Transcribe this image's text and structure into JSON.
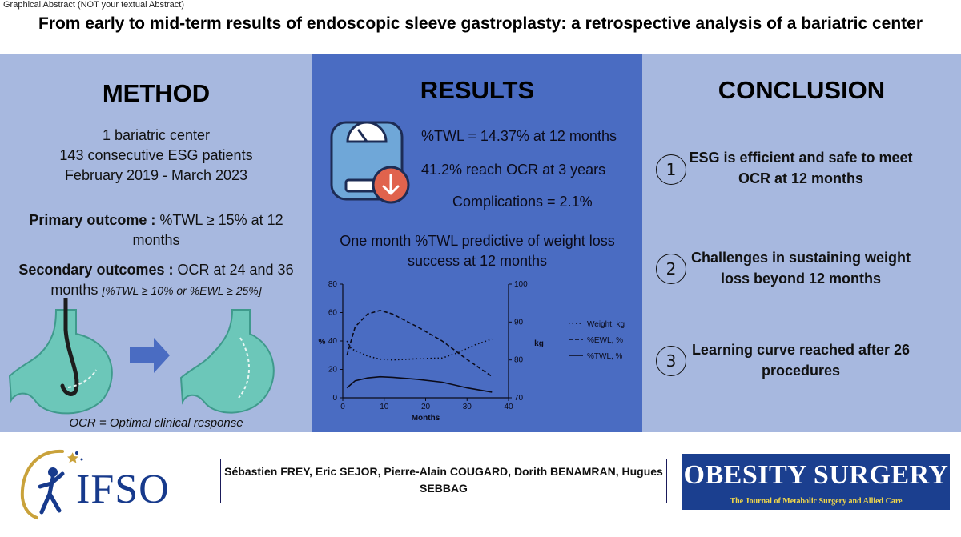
{
  "header": {
    "tag": "Graphical Abstract (NOT your textual Abstract)",
    "title": "From early to mid-term results of endoscopic sleeve gastroplasty: a retrospective analysis of a bariatric center"
  },
  "method": {
    "heading": "METHOD",
    "lines": [
      "1 bariatric center",
      "143 consecutive ESG patients",
      "February 2019 - March 2023"
    ],
    "primary_label": "Primary outcome :",
    "primary_value": "%TWL ≥ 15% at 12 months",
    "secondary_label": "Secondary outcomes :",
    "secondary_value": "OCR at 24 and 36 months",
    "secondary_note": "[%TWL ≥ 10% or %EWL ≥ 25%]",
    "ocr_definition": "OCR = Optimal clinical response"
  },
  "results": {
    "heading": "RESULTS",
    "twl": "%TWL = 14.37% at 12 months",
    "ocr": "41.2% reach OCR at 3 years",
    "complications": "Complications = 2.1%",
    "predictive": "One month %TWL predictive of weight loss success at 12 months"
  },
  "chart_data": {
    "type": "line",
    "xlabel": "Months",
    "ylabel": "%",
    "y2label": "kg",
    "xlim": [
      0,
      40
    ],
    "ylim": [
      0,
      80
    ],
    "y2lim": [
      70,
      100
    ],
    "x_ticks": [
      0,
      10,
      20,
      30,
      40
    ],
    "y_ticks": [
      0,
      20,
      40,
      60,
      80
    ],
    "y2_ticks": [
      70,
      80,
      90,
      100
    ],
    "series": [
      {
        "name": "Weight, kg",
        "axis": "right",
        "style": "dotted",
        "x": [
          1,
          2,
          4,
          6,
          9,
          12,
          18,
          24,
          28,
          32,
          36
        ],
        "y": [
          85,
          83,
          82,
          81,
          80.2,
          80,
          80.3,
          80.5,
          82,
          84,
          85.5
        ]
      },
      {
        "name": "%EWL, %",
        "axis": "left",
        "style": "dashed",
        "x": [
          1,
          3,
          6,
          9,
          12,
          18,
          24,
          30,
          36
        ],
        "y": [
          30,
          50,
          59,
          61.5,
          59,
          50,
          40,
          27,
          15
        ]
      },
      {
        "name": "%TWL, %",
        "axis": "left",
        "style": "solid",
        "x": [
          1,
          3,
          6,
          9,
          12,
          18,
          24,
          30,
          36
        ],
        "y": [
          7,
          12,
          14,
          14.8,
          14.4,
          13,
          11,
          7,
          4
        ]
      }
    ],
    "legend": "right"
  },
  "conclusion": {
    "heading": "CONCLUSION",
    "items": [
      {
        "num": "1",
        "text": "ESG is efficient and safe to meet OCR at 12 months"
      },
      {
        "num": "2",
        "text": "Challenges in sustaining weight loss beyond 12 months"
      },
      {
        "num": "3",
        "text": "Learning curve reached after 26 procedures"
      }
    ]
  },
  "footer": {
    "society": "IFSO",
    "authors": "Sébastien FREY, Eric SEJOR, Pierre-Alain COUGARD, Dorith BENAMRAN, Hugues SEBBAG",
    "journal_title": "OBESITY SURGERY",
    "journal_subtitle": "The Journal of Metabolic Surgery and Allied Care"
  },
  "colors": {
    "side_panel": "#a7b8df",
    "center_panel": "#4a6cc2",
    "stomach": "#6cc7b9",
    "arrow": "#4a6cc2",
    "scale_icon": "#6fa7d8",
    "down_badge": "#e0634d"
  },
  "icons": [
    "scale-icon",
    "weight-down-icon",
    "stomach-icon",
    "right-arrow-icon",
    "endoscope-icon"
  ]
}
